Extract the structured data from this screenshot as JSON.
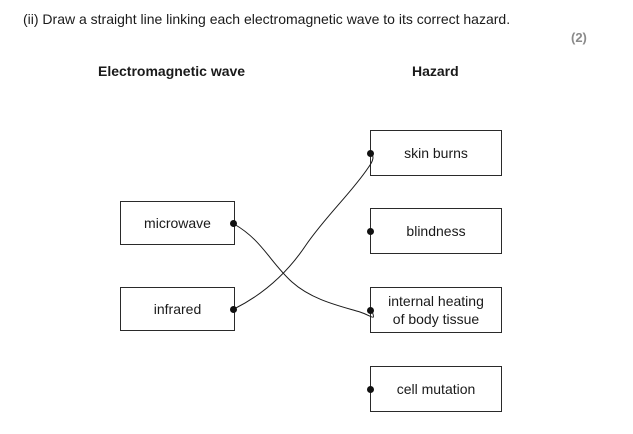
{
  "question": {
    "text": "(ii)  Draw a straight line linking each electromagnetic wave to its correct hazard.",
    "marks": "(2)"
  },
  "columns": {
    "left_heading": "Electromagnetic wave",
    "right_heading": "Hazard"
  },
  "waves": [
    "microwave",
    "infrared"
  ],
  "hazards": [
    "skin burns",
    "blindness",
    "internal heating\nof body tissue",
    "cell mutation"
  ],
  "answer_links": [
    {
      "from": "microwave",
      "to": "internal heating\nof body tissue"
    },
    {
      "from": "infrared",
      "to": "skin burns"
    }
  ]
}
